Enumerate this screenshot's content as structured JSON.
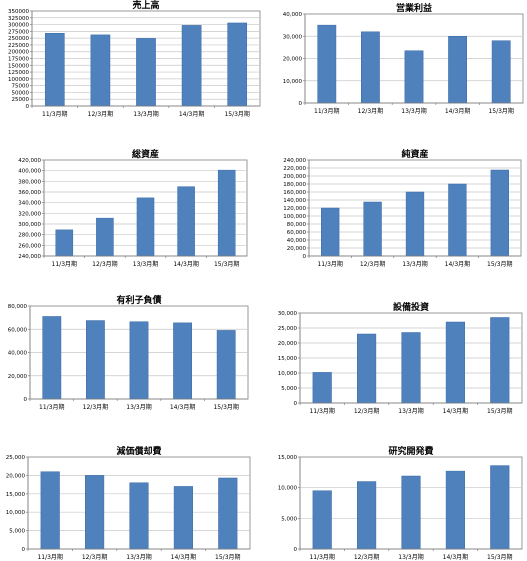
{
  "colors": {
    "bar": "#4f81bd",
    "bar_edge": "#3a6aa8",
    "grid": "#c8c8c8",
    "frame": "#9a9a9a"
  },
  "chart_data": [
    {
      "type": "bar",
      "title": "売上高",
      "categories": [
        "11/3月期",
        "12/3月期",
        "13/3月期",
        "14/3月期",
        "15/3月期"
      ],
      "values": [
        268000,
        262000,
        249000,
        297000,
        306000
      ],
      "ylim": [
        0,
        350000
      ],
      "yticks": [
        0,
        25000,
        50000,
        75000,
        100000,
        125000,
        150000,
        175000,
        200000,
        225000,
        250000,
        275000,
        300000,
        325000,
        350000
      ],
      "ytick_labels": [
        "0",
        "25000",
        "50000",
        "75000",
        "100000",
        "125000",
        "150000",
        "175000",
        "200000",
        "225000",
        "250000",
        "275000",
        "300000",
        "325000",
        "350000"
      ],
      "grid": true
    },
    {
      "type": "bar",
      "title": "営業利益",
      "categories": [
        "11/3月期",
        "12/3月期",
        "13/3月期",
        "14/3月期",
        "15/3月期"
      ],
      "values": [
        35000,
        32000,
        23500,
        30000,
        28000
      ],
      "ylim": [
        0,
        40000
      ],
      "yticks": [
        0,
        10000,
        20000,
        30000,
        40000
      ],
      "ytick_labels": [
        "0",
        "10,000",
        "20,000",
        "30,000",
        "40,000"
      ],
      "grid": true
    },
    {
      "type": "bar",
      "title": "総資産",
      "categories": [
        "11/3月期",
        "12/3月期",
        "13/3月期",
        "14/3月期",
        "15/3月期"
      ],
      "values": [
        289000,
        311000,
        349000,
        370000,
        401000
      ],
      "ylim": [
        240000,
        420000
      ],
      "yticks": [
        240000,
        260000,
        280000,
        300000,
        320000,
        340000,
        360000,
        380000,
        400000,
        420000
      ],
      "ytick_labels": [
        "240,000",
        "260,000",
        "280,000",
        "300,000",
        "320,000",
        "340,000",
        "360,000",
        "380,000",
        "400,000",
        "420,000"
      ],
      "grid": true
    },
    {
      "type": "bar",
      "title": "純資産",
      "categories": [
        "11/3月期",
        "12/3月期",
        "13/3月期",
        "14/3月期",
        "15/3月期"
      ],
      "values": [
        120000,
        135000,
        160000,
        180000,
        215000
      ],
      "ylim": [
        0,
        240000
      ],
      "yticks": [
        0,
        20000,
        40000,
        60000,
        80000,
        100000,
        120000,
        140000,
        160000,
        180000,
        200000,
        220000,
        240000
      ],
      "ytick_labels": [
        "0",
        "20,000",
        "40,000",
        "60,000",
        "80,000",
        "100,000",
        "120,000",
        "140,000",
        "160,000",
        "180,000",
        "200,000",
        "220,000",
        "240,000"
      ],
      "grid": true
    },
    {
      "type": "bar",
      "title": "有利子負債",
      "categories": [
        "11/3月期",
        "12/3月期",
        "13/3月期",
        "14/3月期",
        "15/3月期"
      ],
      "values": [
        71000,
        67500,
        66500,
        65500,
        59000
      ],
      "ylim": [
        0,
        80000
      ],
      "yticks": [
        0,
        20000,
        40000,
        60000,
        80000
      ],
      "ytick_labels": [
        "0",
        "20,000",
        "40,000",
        "60,000",
        "80,000"
      ],
      "grid": true
    },
    {
      "type": "bar",
      "title": "設備投資",
      "categories": [
        "11/3月期",
        "12/3月期",
        "13/3月期",
        "14/3月期",
        "15/3月期"
      ],
      "values": [
        10200,
        23000,
        23500,
        27000,
        28500
      ],
      "ylim": [
        0,
        30000
      ],
      "yticks": [
        0,
        5000,
        10000,
        15000,
        20000,
        25000,
        30000
      ],
      "ytick_labels": [
        "0",
        "5,000",
        "10,000",
        "15,000",
        "20,000",
        "25,000",
        "30,000"
      ],
      "grid": true
    },
    {
      "type": "bar",
      "title": "減価償却費",
      "categories": [
        "11/3月期",
        "12/3月期",
        "13/3月期",
        "14/3月期",
        "15/3月期"
      ],
      "values": [
        21000,
        20000,
        18000,
        17000,
        19300
      ],
      "ylim": [
        0,
        25000
      ],
      "yticks": [
        0,
        5000,
        10000,
        15000,
        20000,
        25000
      ],
      "ytick_labels": [
        "0",
        "5,000",
        "10,000",
        "15,000",
        "20,000",
        "25,000"
      ],
      "grid": true
    },
    {
      "type": "bar",
      "title": "研究開発費",
      "categories": [
        "11/3月期",
        "12/3月期",
        "13/3月期",
        "14/3月期",
        "15/3月期"
      ],
      "values": [
        9500,
        11000,
        11900,
        12700,
        13600
      ],
      "ylim": [
        0,
        15000
      ],
      "yticks": [
        0,
        5000,
        10000,
        15000
      ],
      "ytick_labels": [
        "0",
        "5,000",
        "10,000",
        "15,000"
      ],
      "grid": true
    }
  ]
}
